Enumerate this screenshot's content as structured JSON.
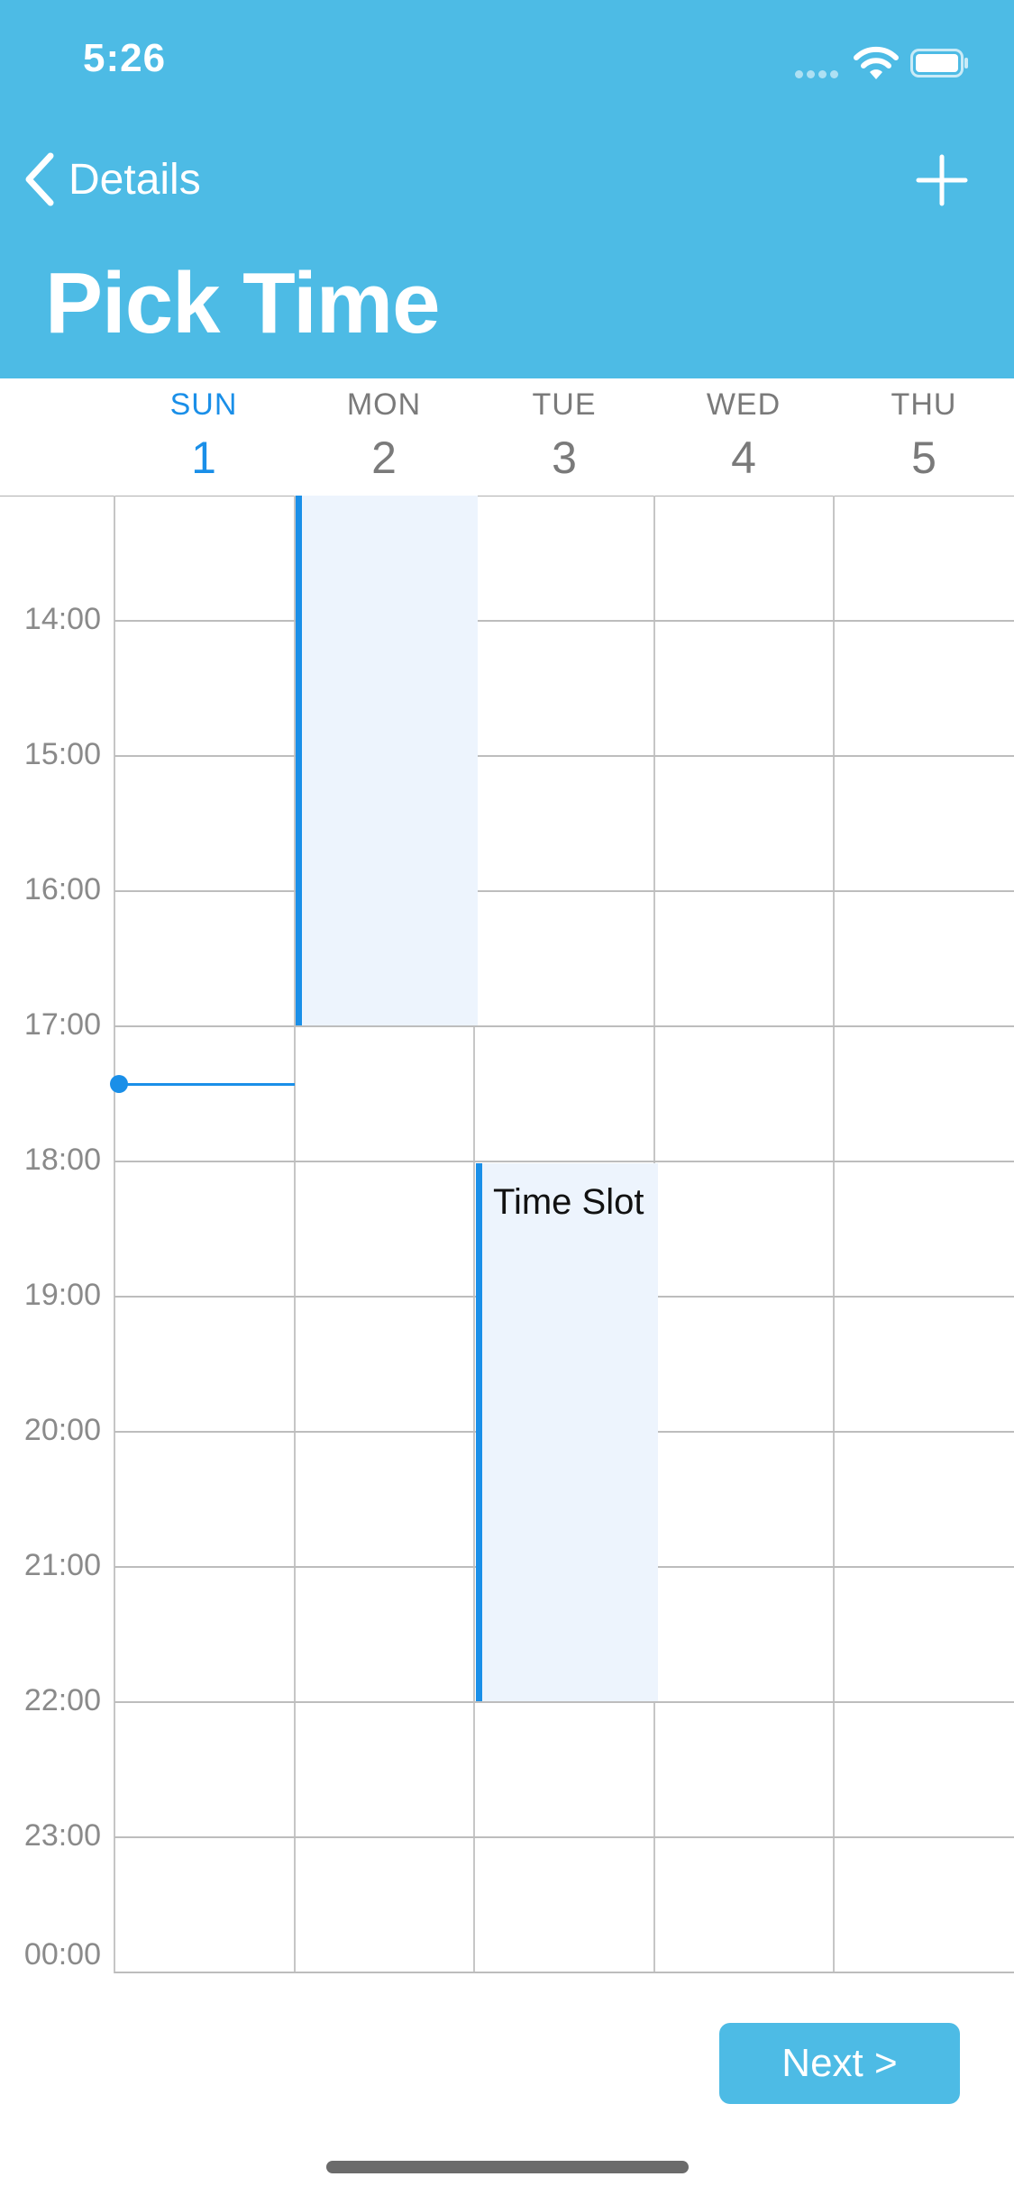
{
  "status_bar": {
    "time": "5:26"
  },
  "nav": {
    "back_label": "Details",
    "title": "Pick Time"
  },
  "days": [
    {
      "name": "SUN",
      "number": "1",
      "today": true
    },
    {
      "name": "MON",
      "number": "2",
      "today": false
    },
    {
      "name": "TUE",
      "number": "3",
      "today": false
    },
    {
      "name": "WED",
      "number": "4",
      "today": false
    },
    {
      "name": "THU",
      "number": "5",
      "today": false
    }
  ],
  "hours": [
    "14:00",
    "15:00",
    "16:00",
    "17:00",
    "18:00",
    "19:00",
    "20:00",
    "21:00",
    "22:00",
    "23:00",
    "00:00"
  ],
  "events": [
    {
      "day": "MON",
      "start": "13:00",
      "end": "17:00",
      "title": ""
    },
    {
      "day": "TUE",
      "start": "18:00",
      "end": "22:00",
      "title": "Time Slot"
    }
  ],
  "current_time_marker": "17:26",
  "footer": {
    "next_label": "Next >"
  },
  "colors": {
    "header_bg": "#4dbbe5",
    "accent": "#1a8fe8",
    "event_bg": "#edf4fd"
  }
}
